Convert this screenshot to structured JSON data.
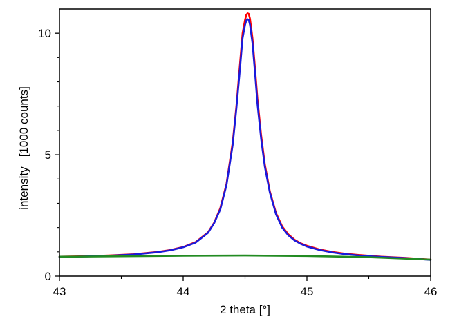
{
  "chart_data": {
    "type": "line",
    "title": "",
    "xlabel": "2 theta [°]",
    "ylabel": "intensity   [1000 counts]",
    "xlim": [
      43,
      46
    ],
    "ylim": [
      0,
      11
    ],
    "grid": false,
    "x_ticks": [
      43,
      44,
      45,
      46
    ],
    "y_ticks": [
      0,
      5,
      10
    ],
    "x_ticks_text": [
      "43",
      "44",
      "45",
      "46"
    ],
    "y_ticks_text": [
      "0",
      "5",
      "10"
    ],
    "series": [
      {
        "color": "#ff0000",
        "x": [
          43.0,
          43.2,
          43.4,
          43.6,
          43.8,
          43.9,
          44.0,
          44.1,
          44.2,
          44.25,
          44.3,
          44.35,
          44.4,
          44.43,
          44.46,
          44.48,
          44.5,
          44.51,
          44.52,
          44.53,
          44.54,
          44.56,
          44.58,
          44.6,
          44.63,
          44.66,
          44.7,
          44.75,
          44.8,
          44.85,
          44.9,
          44.95,
          45.0,
          45.1,
          45.2,
          45.3,
          45.4,
          45.5,
          45.6,
          45.8,
          46.0
        ],
        "y": [
          0.8,
          0.82,
          0.85,
          0.9,
          1.0,
          1.08,
          1.2,
          1.4,
          1.8,
          2.2,
          2.8,
          3.8,
          5.5,
          7.0,
          8.8,
          10.0,
          10.55,
          10.75,
          10.82,
          10.8,
          10.6,
          9.8,
          8.6,
          7.3,
          5.8,
          4.6,
          3.5,
          2.6,
          2.05,
          1.72,
          1.5,
          1.35,
          1.25,
          1.1,
          1.0,
          0.93,
          0.88,
          0.84,
          0.8,
          0.75,
          0.68
        ]
      },
      {
        "color": "#1a1adc",
        "x": [
          43.0,
          43.2,
          43.4,
          43.6,
          43.8,
          43.9,
          44.0,
          44.1,
          44.2,
          44.25,
          44.3,
          44.35,
          44.4,
          44.43,
          44.46,
          44.48,
          44.5,
          44.51,
          44.52,
          44.53,
          44.54,
          44.56,
          44.58,
          44.6,
          44.63,
          44.66,
          44.7,
          44.75,
          44.8,
          44.85,
          44.9,
          44.95,
          45.0,
          45.1,
          45.2,
          45.3,
          45.4,
          45.5,
          45.6,
          45.8,
          46.0
        ],
        "y": [
          0.79,
          0.81,
          0.84,
          0.89,
          0.99,
          1.07,
          1.19,
          1.38,
          1.78,
          2.18,
          2.75,
          3.75,
          5.4,
          6.9,
          8.6,
          9.8,
          10.35,
          10.52,
          10.58,
          10.55,
          10.35,
          9.6,
          8.4,
          7.1,
          5.65,
          4.5,
          3.45,
          2.55,
          2.0,
          1.68,
          1.47,
          1.33,
          1.22,
          1.08,
          0.98,
          0.91,
          0.86,
          0.82,
          0.79,
          0.74,
          0.67
        ]
      },
      {
        "color": "#228b22",
        "x": [
          43.0,
          43.5,
          44.0,
          44.5,
          45.0,
          45.5,
          46.0
        ],
        "y": [
          0.8,
          0.82,
          0.84,
          0.85,
          0.83,
          0.78,
          0.68
        ]
      }
    ]
  }
}
